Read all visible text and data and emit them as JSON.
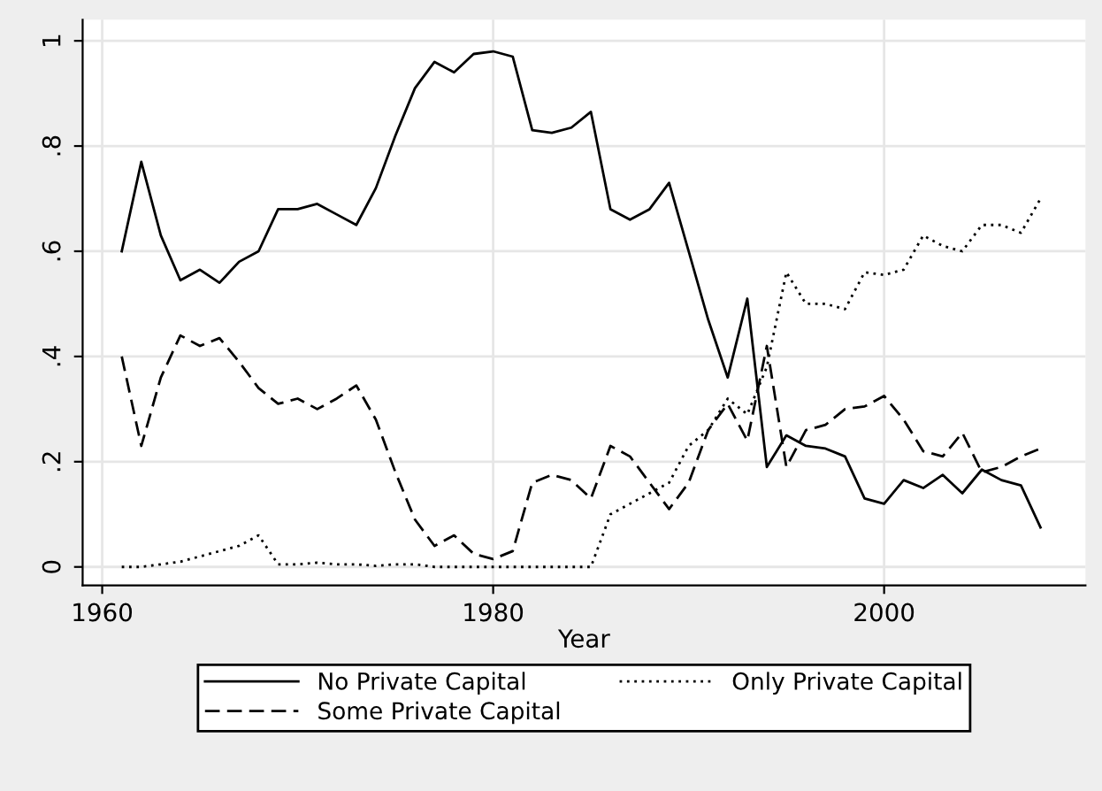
{
  "chart_data": {
    "type": "line",
    "xlabel": "Year",
    "x": [
      1961,
      1962,
      1963,
      1964,
      1965,
      1966,
      1967,
      1968,
      1969,
      1970,
      1971,
      1972,
      1973,
      1974,
      1975,
      1976,
      1977,
      1978,
      1979,
      1980,
      1981,
      1982,
      1983,
      1984,
      1985,
      1986,
      1987,
      1988,
      1989,
      1990,
      1991,
      1992,
      1993,
      1994,
      1995,
      1996,
      1997,
      1998,
      1999,
      2000,
      2001,
      2002,
      2003,
      2004,
      2005,
      2006,
      2007,
      2008
    ],
    "series": [
      {
        "name": "No Private Capital",
        "color": "#000000",
        "line_style": "solid",
        "values": [
          0.6,
          0.77,
          0.63,
          0.545,
          0.565,
          0.54,
          0.58,
          0.6,
          0.68,
          0.68,
          0.69,
          0.67,
          0.65,
          0.72,
          0.82,
          0.91,
          0.96,
          0.94,
          0.975,
          0.98,
          0.97,
          0.83,
          0.825,
          0.835,
          0.865,
          0.68,
          0.66,
          0.68,
          0.73,
          0.6,
          0.47,
          0.36,
          0.51,
          0.19,
          0.25,
          0.23,
          0.225,
          0.21,
          0.13,
          0.12,
          0.165,
          0.15,
          0.175,
          0.14,
          0.185,
          0.165,
          0.155,
          0.075
        ]
      },
      {
        "name": "Some Private Capital",
        "color": "#000000",
        "line_style": "dashed",
        "values": [
          0.4,
          0.23,
          0.36,
          0.44,
          0.42,
          0.435,
          0.39,
          0.34,
          0.31,
          0.32,
          0.3,
          0.32,
          0.345,
          0.28,
          0.18,
          0.09,
          0.04,
          0.06,
          0.025,
          0.015,
          0.03,
          0.16,
          0.175,
          0.165,
          0.13,
          0.23,
          0.21,
          0.16,
          0.11,
          0.16,
          0.26,
          0.31,
          0.24,
          0.42,
          0.19,
          0.26,
          0.27,
          0.3,
          0.305,
          0.325,
          0.28,
          0.22,
          0.21,
          0.255,
          0.18,
          0.19,
          0.21,
          0.225
        ]
      },
      {
        "name": "Only Private Capital",
        "color": "#000000",
        "line_style": "dotted",
        "values": [
          0,
          0,
          0.005,
          0.01,
          0.02,
          0.03,
          0.04,
          0.06,
          0.005,
          0.005,
          0.008,
          0.005,
          0.005,
          0.002,
          0.005,
          0.005,
          0,
          0,
          0,
          0,
          0,
          0,
          0,
          0,
          0,
          0.1,
          0.12,
          0.14,
          0.16,
          0.23,
          0.26,
          0.32,
          0.29,
          0.38,
          0.56,
          0.5,
          0.5,
          0.49,
          0.56,
          0.555,
          0.565,
          0.63,
          0.61,
          0.6,
          0.65,
          0.65,
          0.635,
          0.7
        ]
      }
    ],
    "xlim": [
      1959,
      2010.3
    ],
    "ylim": [
      -0.035,
      1.04
    ],
    "xticks": [
      1960,
      1980,
      2000
    ],
    "yticks": [
      0,
      {
        "value": 0.2,
        "label": ".2"
      },
      {
        "value": 0.4,
        "label": ".4"
      },
      {
        "value": 0.6,
        "label": ".6"
      },
      {
        "value": 0.8,
        "label": ".8"
      },
      1
    ],
    "grid": true,
    "legend": "bottom"
  }
}
